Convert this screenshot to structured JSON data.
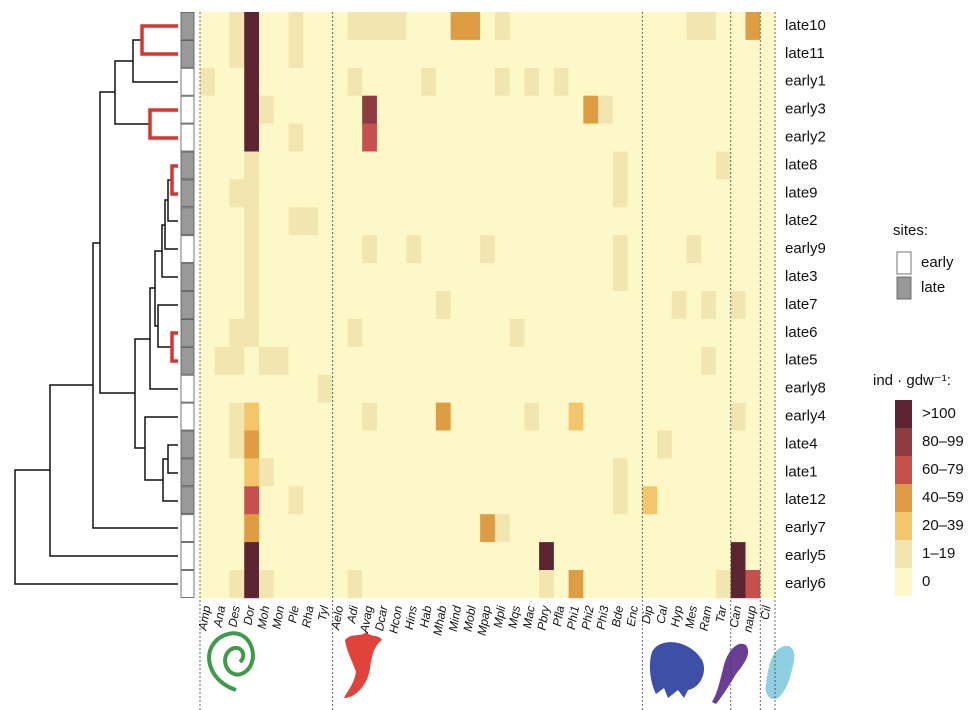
{
  "chart_data": {
    "type": "heatmap",
    "rows": [
      "late10",
      "late11",
      "early1",
      "early3",
      "early2",
      "late8",
      "late9",
      "late2",
      "early9",
      "late3",
      "late7",
      "late6",
      "late5",
      "early8",
      "early4",
      "late4",
      "late1",
      "late12",
      "early7",
      "early5",
      "early6"
    ],
    "row_sites": [
      "late",
      "late",
      "early",
      "early",
      "early",
      "late",
      "late",
      "late",
      "early",
      "late",
      "late",
      "late",
      "late",
      "early",
      "early",
      "late",
      "late",
      "late",
      "early",
      "early",
      "early"
    ],
    "column_groups": [
      {
        "color": "#3f9a4c",
        "columns": [
          "Amp",
          "Ana",
          "Des",
          "Dor",
          "Moh",
          "Mon",
          "Ple",
          "Rha",
          "Tyl"
        ]
      },
      {
        "color": "#e0433a",
        "columns": [
          "Aelo",
          "Adi",
          "Avag",
          "Dcar",
          "Hcon",
          "Hins",
          "Hab",
          "Mhab",
          "Mind",
          "Mobl",
          "Mpap",
          "Mpli",
          "Mqs",
          "Mac",
          "Pbry",
          "Pfla",
          "Phi1",
          "Phi2",
          "Phi3",
          "Bde",
          "Enc"
        ]
      },
      {
        "color": "#3d4fa6",
        "columns": [
          "Dip",
          "Cal",
          "Hyp",
          "Mes",
          "Ram",
          "Tar"
        ]
      },
      {
        "color": "#6b3d96",
        "columns": [
          "Can",
          "naup"
        ]
      },
      {
        "color": "#45b7d3",
        "columns": [
          "Cil"
        ]
      }
    ],
    "values": [
      [
        0,
        0,
        10,
        150,
        0,
        0,
        10,
        0,
        0,
        0,
        10,
        10,
        10,
        10,
        0,
        0,
        0,
        50,
        50,
        0,
        10,
        0,
        0,
        0,
        0,
        0,
        0,
        0,
        0,
        0,
        0,
        0,
        0,
        10,
        10,
        0,
        0,
        50,
        0
      ],
      [
        0,
        0,
        10,
        150,
        0,
        0,
        10,
        0,
        0,
        0,
        0,
        0,
        0,
        0,
        0,
        0,
        0,
        0,
        0,
        0,
        0,
        0,
        0,
        0,
        0,
        0,
        0,
        0,
        0,
        0,
        0,
        0,
        0,
        0,
        0,
        0,
        0,
        0,
        0
      ],
      [
        10,
        0,
        0,
        150,
        0,
        0,
        0,
        0,
        0,
        0,
        10,
        0,
        0,
        0,
        0,
        10,
        0,
        0,
        0,
        0,
        10,
        0,
        10,
        0,
        10,
        0,
        0,
        0,
        0,
        0,
        0,
        0,
        0,
        0,
        0,
        0,
        0,
        0,
        0
      ],
      [
        0,
        0,
        0,
        150,
        10,
        0,
        0,
        0,
        0,
        0,
        0,
        90,
        0,
        0,
        0,
        0,
        0,
        0,
        0,
        0,
        0,
        0,
        0,
        0,
        0,
        0,
        50,
        10,
        0,
        0,
        0,
        0,
        0,
        0,
        0,
        0,
        0,
        0,
        0
      ],
      [
        0,
        0,
        0,
        150,
        0,
        0,
        10,
        0,
        0,
        0,
        0,
        70,
        0,
        0,
        0,
        0,
        0,
        0,
        0,
        0,
        0,
        0,
        0,
        0,
        0,
        0,
        0,
        0,
        0,
        0,
        0,
        0,
        0,
        0,
        0,
        0,
        0,
        0,
        0
      ],
      [
        0,
        0,
        0,
        10,
        0,
        0,
        0,
        0,
        0,
        0,
        0,
        0,
        0,
        0,
        0,
        0,
        0,
        0,
        0,
        0,
        0,
        0,
        0,
        0,
        0,
        0,
        0,
        0,
        10,
        0,
        0,
        0,
        0,
        0,
        0,
        10,
        0,
        0,
        0
      ],
      [
        0,
        0,
        10,
        10,
        0,
        0,
        0,
        0,
        0,
        0,
        0,
        0,
        0,
        0,
        0,
        0,
        0,
        0,
        0,
        0,
        0,
        0,
        0,
        0,
        0,
        0,
        0,
        0,
        10,
        0,
        0,
        0,
        0,
        0,
        0,
        0,
        0,
        0,
        0
      ],
      [
        0,
        0,
        0,
        10,
        0,
        0,
        10,
        10,
        0,
        0,
        0,
        0,
        0,
        0,
        0,
        0,
        0,
        0,
        0,
        0,
        0,
        0,
        0,
        0,
        0,
        0,
        0,
        0,
        0,
        0,
        0,
        0,
        0,
        0,
        0,
        0,
        0,
        0,
        0
      ],
      [
        0,
        0,
        0,
        10,
        0,
        0,
        0,
        0,
        0,
        0,
        0,
        10,
        0,
        0,
        10,
        0,
        0,
        0,
        0,
        10,
        0,
        0,
        0,
        0,
        0,
        0,
        0,
        0,
        10,
        0,
        0,
        0,
        0,
        10,
        0,
        0,
        0,
        0,
        0
      ],
      [
        0,
        0,
        0,
        10,
        0,
        0,
        0,
        0,
        0,
        0,
        0,
        0,
        0,
        0,
        0,
        0,
        0,
        0,
        0,
        0,
        0,
        0,
        0,
        0,
        0,
        0,
        0,
        0,
        10,
        0,
        0,
        0,
        0,
        0,
        0,
        0,
        0,
        0,
        0
      ],
      [
        0,
        0,
        0,
        10,
        0,
        0,
        0,
        0,
        0,
        0,
        0,
        0,
        0,
        0,
        0,
        0,
        10,
        0,
        0,
        0,
        0,
        0,
        0,
        0,
        0,
        0,
        0,
        0,
        0,
        0,
        0,
        0,
        10,
        0,
        10,
        0,
        10,
        0,
        0
      ],
      [
        0,
        0,
        10,
        10,
        0,
        0,
        0,
        0,
        0,
        0,
        10,
        0,
        0,
        0,
        0,
        0,
        0,
        0,
        0,
        0,
        0,
        10,
        0,
        0,
        0,
        0,
        0,
        0,
        0,
        0,
        0,
        0,
        0,
        0,
        0,
        0,
        0,
        0,
        0
      ],
      [
        0,
        10,
        10,
        0,
        10,
        10,
        0,
        0,
        0,
        0,
        0,
        0,
        0,
        0,
        0,
        0,
        0,
        0,
        0,
        0,
        0,
        0,
        0,
        0,
        0,
        0,
        0,
        0,
        0,
        0,
        0,
        0,
        0,
        0,
        10,
        0,
        0,
        0,
        0
      ],
      [
        0,
        0,
        0,
        0,
        0,
        0,
        0,
        0,
        10,
        0,
        0,
        0,
        0,
        0,
        0,
        0,
        0,
        0,
        0,
        0,
        0,
        0,
        0,
        0,
        0,
        0,
        0,
        0,
        0,
        0,
        0,
        0,
        0,
        0,
        0,
        0,
        0,
        0,
        0
      ],
      [
        0,
        0,
        10,
        30,
        0,
        0,
        0,
        0,
        0,
        0,
        0,
        10,
        0,
        0,
        0,
        0,
        50,
        0,
        0,
        0,
        0,
        0,
        10,
        0,
        0,
        30,
        0,
        0,
        0,
        0,
        0,
        0,
        0,
        0,
        0,
        0,
        10,
        0,
        0
      ],
      [
        0,
        0,
        10,
        50,
        0,
        0,
        0,
        0,
        0,
        0,
        0,
        0,
        0,
        0,
        0,
        0,
        0,
        0,
        0,
        0,
        0,
        0,
        0,
        0,
        0,
        0,
        0,
        0,
        0,
        0,
        0,
        10,
        0,
        0,
        0,
        0,
        0,
        0,
        0
      ],
      [
        0,
        0,
        0,
        30,
        10,
        0,
        0,
        0,
        0,
        0,
        0,
        0,
        0,
        0,
        0,
        0,
        0,
        0,
        0,
        0,
        0,
        0,
        0,
        0,
        0,
        0,
        0,
        0,
        10,
        0,
        0,
        0,
        0,
        0,
        0,
        0,
        0,
        0,
        0
      ],
      [
        0,
        0,
        0,
        70,
        0,
        0,
        10,
        0,
        0,
        0,
        0,
        0,
        0,
        0,
        0,
        0,
        0,
        0,
        0,
        0,
        0,
        0,
        0,
        0,
        0,
        0,
        0,
        0,
        10,
        0,
        30,
        0,
        0,
        0,
        0,
        0,
        0,
        0,
        0
      ],
      [
        0,
        0,
        0,
        50,
        0,
        0,
        0,
        0,
        0,
        0,
        0,
        0,
        0,
        0,
        0,
        0,
        0,
        0,
        0,
        50,
        10,
        0,
        0,
        0,
        0,
        0,
        0,
        0,
        0,
        0,
        0,
        0,
        0,
        0,
        0,
        0,
        0,
        0,
        0
      ],
      [
        0,
        0,
        0,
        150,
        0,
        0,
        0,
        0,
        0,
        0,
        0,
        0,
        0,
        0,
        0,
        0,
        0,
        0,
        0,
        0,
        0,
        0,
        0,
        150,
        0,
        0,
        0,
        0,
        0,
        0,
        0,
        0,
        0,
        0,
        0,
        0,
        150,
        0,
        0
      ],
      [
        0,
        0,
        10,
        150,
        10,
        0,
        0,
        0,
        0,
        0,
        10,
        0,
        0,
        0,
        0,
        0,
        0,
        0,
        0,
        0,
        0,
        0,
        0,
        10,
        0,
        50,
        0,
        0,
        0,
        0,
        0,
        0,
        0,
        0,
        0,
        10,
        150,
        70,
        0
      ]
    ],
    "site_legend": {
      "title": "sites:",
      "entries": [
        {
          "label": "early",
          "color": "#ffffff"
        },
        {
          "label": "late",
          "color": "#999999"
        }
      ]
    },
    "color_legend": {
      "title": "ind · gdw⁻¹:",
      "entries": [
        {
          "label": ">100",
          "min": 100,
          "color": "#5c2531"
        },
        {
          "label": "80–99",
          "min": 80,
          "color": "#8c3b3e"
        },
        {
          "label": "60–79",
          "min": 60,
          "color": "#c6504b"
        },
        {
          "label": "40–59",
          "min": 40,
          "color": "#df9d43"
        },
        {
          "label": "20–39",
          "min": 20,
          "color": "#f4c66c"
        },
        {
          "label": "1–19",
          "min": 1,
          "color": "#f2e5af"
        },
        {
          "label": "0",
          "min": 0,
          "color": "#fdf8c8"
        }
      ]
    }
  }
}
